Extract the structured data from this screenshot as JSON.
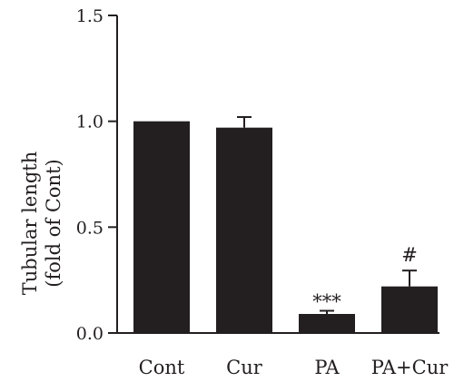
{
  "chart_data": {
    "type": "bar",
    "title": "",
    "xlabel": "",
    "ylabel": [
      "Tubular length",
      "(fold of Cont)"
    ],
    "categories": [
      "Cont",
      "Cur",
      "PA",
      "PA+Cur"
    ],
    "values": [
      1.0,
      0.97,
      0.09,
      0.22
    ],
    "errors": [
      0.0,
      0.05,
      0.015,
      0.075
    ],
    "annotations": [
      "",
      "",
      "***",
      "#"
    ],
    "ylim": [
      0,
      1.5
    ],
    "yticks": [
      0.0,
      0.5,
      1.0,
      1.5
    ],
    "ytick_labels": [
      "0.0",
      "0.5",
      "1.0",
      "1.5"
    ],
    "grid": false,
    "legend": "none",
    "bar_color": "#231f20",
    "axis_color": "#231f20"
  }
}
